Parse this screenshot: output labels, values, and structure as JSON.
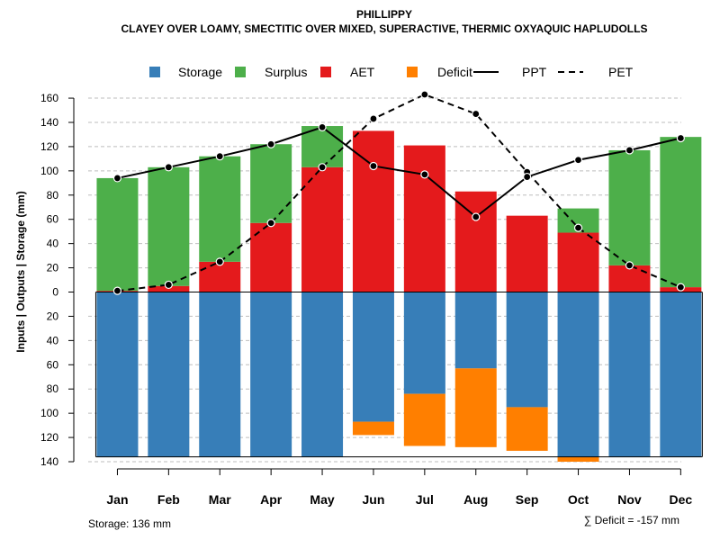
{
  "chart_data": {
    "type": "bar",
    "title": "PHILLIPPY",
    "subtitle": "CLAYEY OVER LOAMY, SMECTITIC OVER MIXED, SUPERACTIVE, THERMIC OXYAQUIC HAPLUDOLLS",
    "ylabel": "Inputs | Outputs | Storage    (mm)",
    "ylim": [
      -140,
      165
    ],
    "y_ticks": [
      {
        "value": 160,
        "label": "160"
      },
      {
        "value": 140,
        "label": "140"
      },
      {
        "value": 120,
        "label": "120"
      },
      {
        "value": 100,
        "label": "100"
      },
      {
        "value": 80,
        "label": "80"
      },
      {
        "value": 60,
        "label": "60"
      },
      {
        "value": 40,
        "label": "40"
      },
      {
        "value": 20,
        "label": "20"
      },
      {
        "value": 0,
        "label": "0"
      },
      {
        "value": -20,
        "label": "20"
      },
      {
        "value": -40,
        "label": "40"
      },
      {
        "value": -60,
        "label": "60"
      },
      {
        "value": -80,
        "label": "80"
      },
      {
        "value": -100,
        "label": "100"
      },
      {
        "value": -120,
        "label": "120"
      },
      {
        "value": -140,
        "label": "140"
      }
    ],
    "categories": [
      "Jan",
      "Feb",
      "Mar",
      "Apr",
      "May",
      "Jun",
      "Jul",
      "Aug",
      "Sep",
      "Oct",
      "Nov",
      "Dec"
    ],
    "legend": [
      {
        "name": "Storage",
        "kind": "box",
        "color": "#377EB8"
      },
      {
        "name": "Surplus",
        "kind": "box",
        "color": "#4DAF4A"
      },
      {
        "name": "AET",
        "kind": "box",
        "color": "#E41A1C"
      },
      {
        "name": "Deficit",
        "kind": "box",
        "color": "#FF7F00"
      },
      {
        "name": "PPT",
        "kind": "solid"
      },
      {
        "name": "PET",
        "kind": "dashed"
      }
    ],
    "series": [
      {
        "name": "AET",
        "values": [
          1,
          5,
          25,
          57,
          103,
          133,
          121,
          83,
          63,
          49,
          22,
          4
        ]
      },
      {
        "name": "Surplus",
        "values": [
          93,
          98,
          87,
          65,
          34,
          0,
          0,
          0,
          0,
          20,
          95,
          124
        ]
      },
      {
        "name": "Storage",
        "values": [
          136,
          136,
          136,
          136,
          136,
          107,
          84,
          63,
          95,
          136,
          136,
          136
        ]
      },
      {
        "name": "Deficit",
        "values": [
          0,
          0,
          0,
          0,
          0,
          11,
          43,
          65,
          36,
          4,
          0,
          0
        ]
      },
      {
        "name": "PPT",
        "values": [
          94,
          103,
          112,
          122,
          136,
          104,
          97,
          62,
          95,
          109,
          117,
          127
        ]
      },
      {
        "name": "PET",
        "values": [
          1,
          6,
          25,
          57,
          103,
          143,
          163,
          147,
          99,
          53,
          22,
          4
        ]
      }
    ],
    "colors": {
      "storage": "#377EB8",
      "surplus": "#4DAF4A",
      "aet": "#E41A1C",
      "deficit": "#FF7F00",
      "grid": "#BEBEBE"
    }
  },
  "footer": {
    "storage_note": "Storage: 136 mm",
    "deficit_note": "∑ Deficit = -157 mm"
  }
}
